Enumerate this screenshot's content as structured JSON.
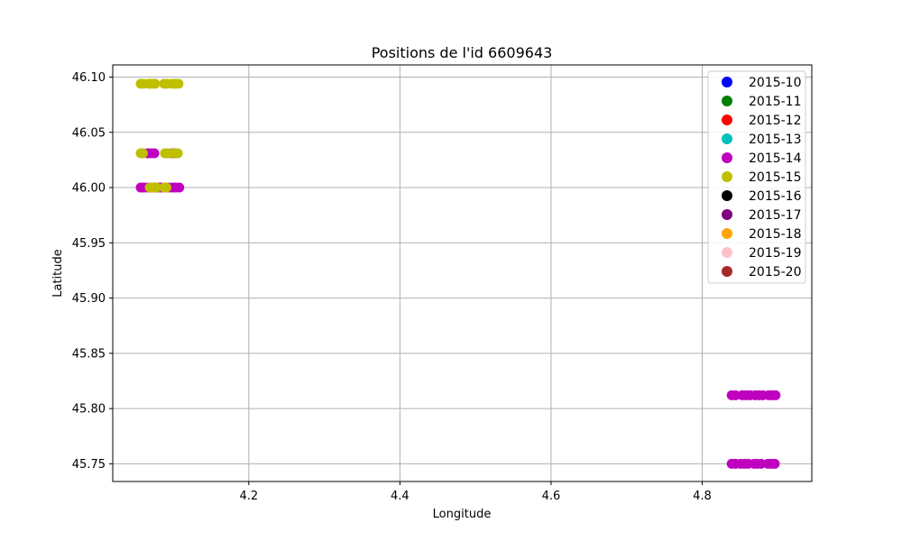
{
  "chart_data": {
    "type": "scatter",
    "title": "Positions de l'id 6609643",
    "xlabel": "Longitude",
    "ylabel": "Latitude",
    "xlim": [
      4.02,
      4.945
    ],
    "ylim": [
      45.734,
      46.111
    ],
    "xticks": [
      4.2,
      4.4,
      4.6,
      4.8
    ],
    "xtick_labels": [
      "4.2",
      "4.4",
      "4.6",
      "4.8"
    ],
    "yticks": [
      45.75,
      45.8,
      45.85,
      45.9,
      45.95,
      46.0,
      46.05,
      46.1
    ],
    "ytick_labels": [
      "45.75",
      "45.80",
      "45.85",
      "45.90",
      "45.95",
      "46.00",
      "46.05",
      "46.10"
    ],
    "grid": true,
    "legend_position": "top-right",
    "series": [
      {
        "name": "2015-10",
        "color": "#0000ff",
        "points": []
      },
      {
        "name": "2015-11",
        "color": "#008000",
        "points": []
      },
      {
        "name": "2015-12",
        "color": "#ff0000",
        "points": []
      },
      {
        "name": "2015-13",
        "color": "#00bfbf",
        "points": []
      },
      {
        "name": "2015-14",
        "color": "#bf00bf",
        "points": [
          [
            4.057,
            46.0
          ],
          [
            4.061,
            46.0
          ],
          [
            4.066,
            46.0
          ],
          [
            4.07,
            46.0
          ],
          [
            4.075,
            46.0
          ],
          [
            4.08,
            46.0
          ],
          [
            4.084,
            46.0
          ],
          [
            4.089,
            46.0
          ],
          [
            4.094,
            46.0
          ],
          [
            4.099,
            46.0
          ],
          [
            4.103,
            46.0
          ],
          [
            4.108,
            46.0
          ],
          [
            4.066,
            46.031
          ],
          [
            4.07,
            46.031
          ],
          [
            4.075,
            46.031
          ],
          [
            4.099,
            46.031
          ],
          [
            4.103,
            46.031
          ],
          [
            4.839,
            45.812
          ],
          [
            4.844,
            45.812
          ],
          [
            4.853,
            45.812
          ],
          [
            4.858,
            45.812
          ],
          [
            4.863,
            45.812
          ],
          [
            4.87,
            45.812
          ],
          [
            4.875,
            45.812
          ],
          [
            4.88,
            45.812
          ],
          [
            4.888,
            45.812
          ],
          [
            4.893,
            45.812
          ],
          [
            4.897,
            45.812
          ],
          [
            4.839,
            45.75
          ],
          [
            4.844,
            45.75
          ],
          [
            4.851,
            45.75
          ],
          [
            4.856,
            45.75
          ],
          [
            4.861,
            45.75
          ],
          [
            4.869,
            45.75
          ],
          [
            4.873,
            45.75
          ],
          [
            4.878,
            45.75
          ],
          [
            4.887,
            45.75
          ],
          [
            4.892,
            45.75
          ],
          [
            4.896,
            45.75
          ]
        ]
      },
      {
        "name": "2015-15",
        "color": "#bfbf00",
        "points": [
          [
            4.057,
            46.094
          ],
          [
            4.061,
            46.094
          ],
          [
            4.068,
            46.094
          ],
          [
            4.072,
            46.094
          ],
          [
            4.076,
            46.094
          ],
          [
            4.088,
            46.094
          ],
          [
            4.092,
            46.094
          ],
          [
            4.099,
            46.094
          ],
          [
            4.103,
            46.094
          ],
          [
            4.107,
            46.094
          ],
          [
            4.057,
            46.031
          ],
          [
            4.06,
            46.031
          ],
          [
            4.089,
            46.031
          ],
          [
            4.093,
            46.031
          ],
          [
            4.101,
            46.031
          ],
          [
            4.106,
            46.031
          ],
          [
            4.069,
            46.0
          ],
          [
            4.073,
            46.0
          ],
          [
            4.078,
            46.0
          ],
          [
            4.088,
            46.0
          ],
          [
            4.091,
            46.0
          ]
        ]
      },
      {
        "name": "2015-16",
        "color": "#000000",
        "points": []
      },
      {
        "name": "2015-17",
        "color": "#800080",
        "points": []
      },
      {
        "name": "2015-18",
        "color": "#ffa500",
        "points": []
      },
      {
        "name": "2015-19",
        "color": "#ffc0cb",
        "points": []
      },
      {
        "name": "2015-20",
        "color": "#a52a2a",
        "points": []
      }
    ]
  }
}
